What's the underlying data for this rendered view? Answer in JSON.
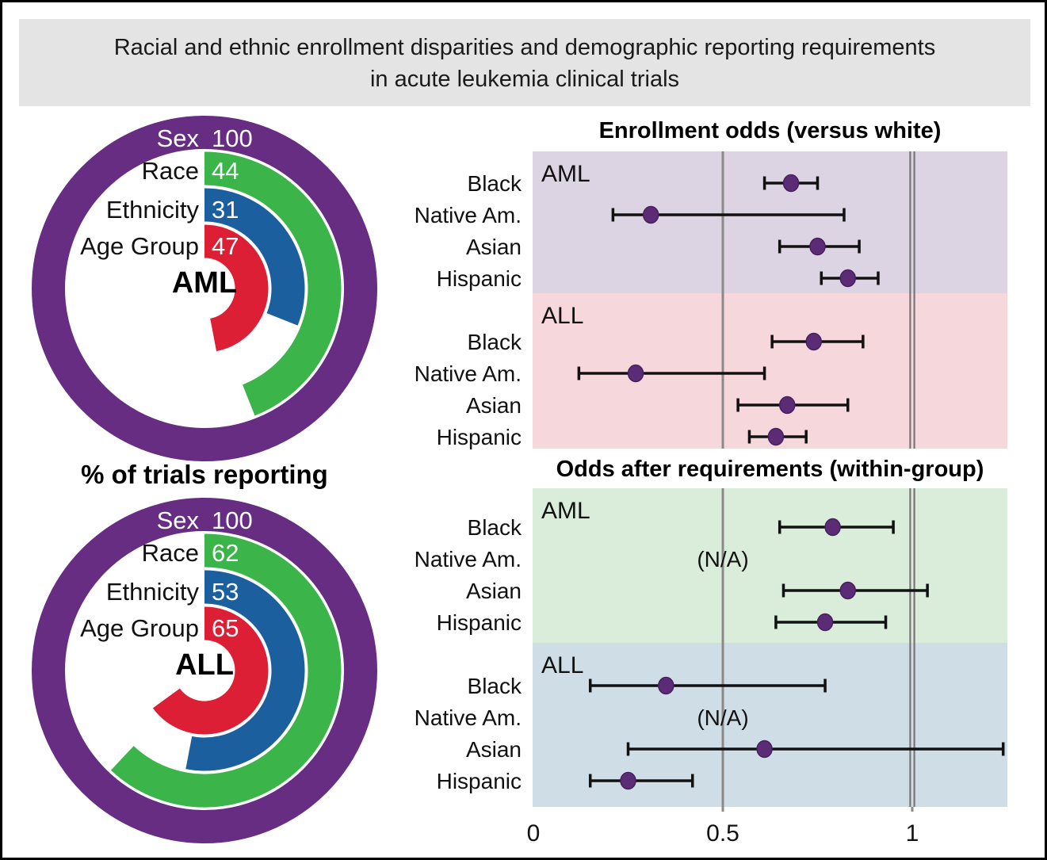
{
  "banner": {
    "line1": "Racial and ethnic enrollment disparities and demographic reporting requirements",
    "line2": "in acute leukemia clinical trials"
  },
  "left_panel": {
    "caption": "% of trials reporting"
  },
  "chart_data": [
    {
      "type": "donut",
      "id": "donut-aml",
      "center_label": "AML",
      "units": "% of trials reporting",
      "rings": [
        {
          "label": "Sex",
          "value": 100,
          "color": "#662d83"
        },
        {
          "label": "Race",
          "value": 44,
          "color": "#3bb54a"
        },
        {
          "label": "Ethnicity",
          "value": 31,
          "color": "#1c5f9e"
        },
        {
          "label": "Age Group",
          "value": 47,
          "color": "#dc1f35"
        }
      ]
    },
    {
      "type": "donut",
      "id": "donut-all",
      "center_label": "ALL",
      "units": "% of trials reporting",
      "rings": [
        {
          "label": "Sex",
          "value": 100,
          "color": "#662d83"
        },
        {
          "label": "Race",
          "value": 62,
          "color": "#3bb54a"
        },
        {
          "label": "Ethnicity",
          "value": 53,
          "color": "#1c5f9e"
        },
        {
          "label": "Age Group",
          "value": 65,
          "color": "#dc1f35"
        }
      ]
    },
    {
      "type": "forest",
      "id": "forest-enrollment",
      "title": "Enrollment odds (versus white)",
      "xlim": [
        0,
        1.25
      ],
      "x_ticks": [
        "0",
        "0.5",
        "1"
      ],
      "x_tick_values": [
        0,
        0.5,
        1
      ],
      "gridline": 0.5,
      "reference_line": 1,
      "marker_color": "#5c2b76",
      "groups": [
        {
          "label": "AML",
          "bg": "#dcd3e3",
          "rows": [
            {
              "label": "Black",
              "value": 0.68,
              "ci": [
                0.61,
                0.75
              ]
            },
            {
              "label": "Native Am.",
              "value": 0.31,
              "ci": [
                0.21,
                0.82
              ]
            },
            {
              "label": "Asian",
              "value": 0.75,
              "ci": [
                0.65,
                0.86
              ]
            },
            {
              "label": "Hispanic",
              "value": 0.83,
              "ci": [
                0.76,
                0.91
              ]
            }
          ]
        },
        {
          "label": "ALL",
          "bg": "#f6d7dc",
          "rows": [
            {
              "label": "Black",
              "value": 0.74,
              "ci": [
                0.63,
                0.87
              ]
            },
            {
              "label": "Native Am.",
              "value": 0.27,
              "ci": [
                0.12,
                0.61
              ]
            },
            {
              "label": "Asian",
              "value": 0.67,
              "ci": [
                0.54,
                0.83
              ]
            },
            {
              "label": "Hispanic",
              "value": 0.64,
              "ci": [
                0.57,
                0.72
              ]
            }
          ]
        }
      ]
    },
    {
      "type": "forest",
      "id": "forest-requirements",
      "title": "Odds after requirements (within-group)",
      "xlim": [
        0,
        1.25
      ],
      "x_ticks": [
        "0",
        "0.5",
        "1"
      ],
      "x_tick_values": [
        0,
        0.5,
        1
      ],
      "gridline": 0.5,
      "reference_line": 1,
      "marker_color": "#5c2b76",
      "groups": [
        {
          "label": "AML",
          "bg": "#d9edda",
          "rows": [
            {
              "label": "Black",
              "value": 0.79,
              "ci": [
                0.65,
                0.95
              ]
            },
            {
              "label": "Native Am.",
              "value": null,
              "na_text": "(N/A)"
            },
            {
              "label": "Asian",
              "value": 0.83,
              "ci": [
                0.66,
                1.04
              ]
            },
            {
              "label": "Hispanic",
              "value": 0.77,
              "ci": [
                0.64,
                0.93
              ]
            }
          ]
        },
        {
          "label": "ALL",
          "bg": "#cfdde6",
          "rows": [
            {
              "label": "Black",
              "value": 0.35,
              "ci": [
                0.15,
                0.77
              ]
            },
            {
              "label": "Native Am.",
              "value": null,
              "na_text": "(N/A)"
            },
            {
              "label": "Asian",
              "value": 0.61,
              "ci": [
                0.25,
                1.24
              ]
            },
            {
              "label": "Hispanic",
              "value": 0.25,
              "ci": [
                0.15,
                0.42
              ]
            }
          ]
        }
      ]
    }
  ]
}
